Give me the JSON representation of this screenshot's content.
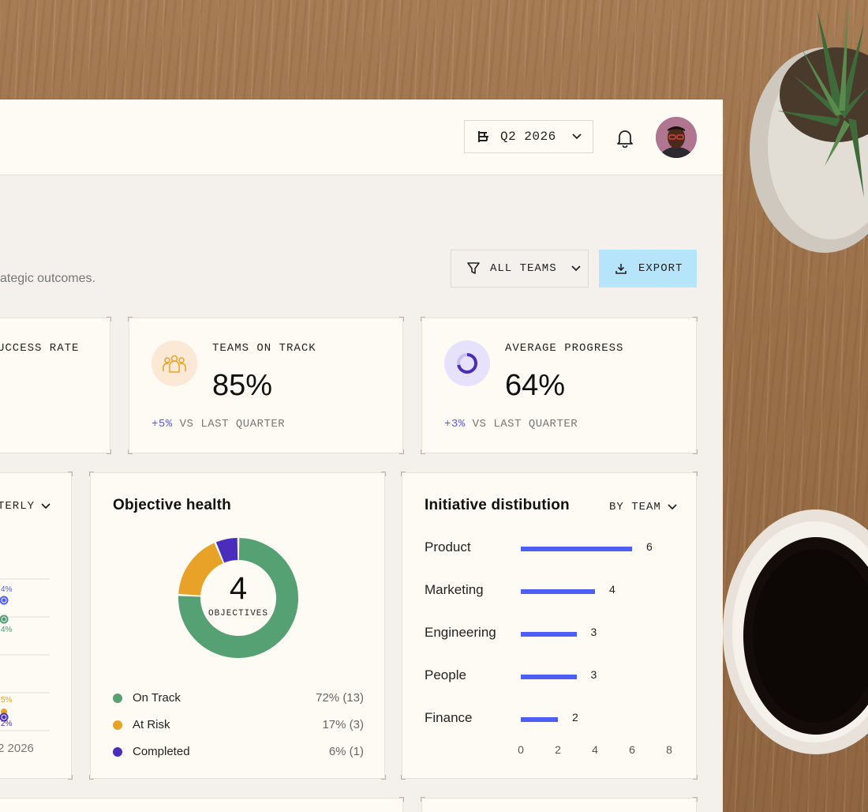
{
  "header": {
    "quarter_label": "Q2 2026"
  },
  "page": {
    "subtitle_visible": "ategic outcomes.",
    "filter_label": "ALL TEAMS",
    "export_label": "EXPORT"
  },
  "stats": {
    "success_rate": {
      "label": "UCCESS RATE"
    },
    "teams_on_track": {
      "label": "TEAMS ON TRACK",
      "value": "85%",
      "delta": "+5%",
      "delta_suffix": "VS LAST QUARTER"
    },
    "average_progress": {
      "label": "AVERAGE PROGRESS",
      "value": "64%",
      "delta": "+3%",
      "delta_suffix": "VS LAST QUARTER"
    }
  },
  "left_chart": {
    "dropdown_label": "TERLY",
    "x_label": "2 2026",
    "point_labels": [
      "4%",
      "4%",
      "5%",
      "2%"
    ],
    "colors": {
      "blue": "#4f5ef2",
      "green": "#4c9b6f",
      "orange": "#e8a227",
      "purple": "#4a2dbb"
    }
  },
  "objective_health": {
    "title": "Objective health",
    "center_value": "4",
    "center_label": "OBJECTIVES",
    "chart_data": {
      "type": "pie",
      "categories": [
        "On Track",
        "At Risk",
        "Completed"
      ],
      "values": [
        72,
        17,
        6
      ],
      "colors": [
        "#55a174",
        "#e8a227",
        "#4a2dbb"
      ]
    },
    "legend": [
      {
        "label": "On Track",
        "value": "72% (13)",
        "color": "#55a174"
      },
      {
        "label": "At Risk",
        "value": "17% (3)",
        "color": "#e8a227"
      },
      {
        "label": "Completed",
        "value": "6% (1)",
        "color": "#4a2dbb"
      }
    ]
  },
  "initiative_distribution": {
    "title": "Initiative distibution",
    "dropdown_label": "BY TEAM",
    "chart_data": {
      "type": "bar",
      "orientation": "horizontal",
      "categories": [
        "Product",
        "Marketing",
        "Engineering",
        "People",
        "Finance"
      ],
      "values": [
        6,
        4,
        3,
        3,
        2
      ],
      "xlim": [
        0,
        8
      ],
      "x_ticks": [
        "0",
        "2",
        "4",
        "6",
        "8"
      ],
      "color": "#4f5ef2"
    }
  }
}
